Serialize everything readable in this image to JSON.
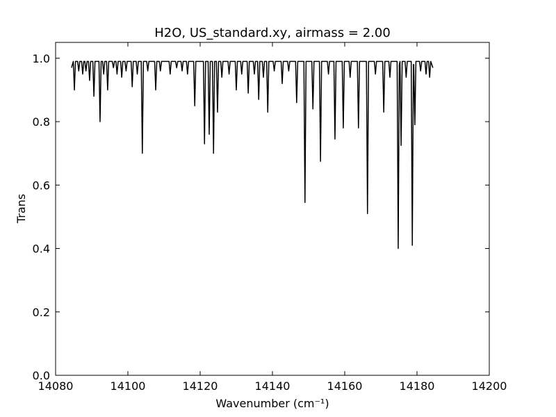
{
  "chart_data": {
    "type": "line",
    "title": "H2O, US_standard.xy, airmass = 2.00",
    "x_label": "Wavenumber (cm⁻¹)",
    "y_label": "Trans",
    "xlim": [
      14080,
      14200
    ],
    "ylim": [
      0,
      1.05
    ],
    "xticks": [
      14080,
      14100,
      14120,
      14140,
      14160,
      14180,
      14200
    ],
    "yticks": [
      {
        "value": 0,
        "label": "0.0"
      },
      0.2,
      0.4,
      0.6,
      0.8,
      {
        "value": 1,
        "label": "1.0"
      }
    ],
    "grid": false,
    "series": [
      {
        "color": "#000000",
        "x": [
          14084.4,
          14084.9,
          14085.2,
          14085.5,
          14086.1,
          14086.4,
          14086.7,
          14087.2,
          14087.5,
          14087.8,
          14088.1,
          14088.4,
          14088.7,
          14089.1,
          14089.4,
          14089.7,
          14090.3,
          14090.6,
          14090.9,
          14092.0,
          14092.3,
          14092.6,
          14093.0,
          14093.3,
          14093.6,
          14094.1,
          14094.4,
          14094.7,
          14095.7,
          14096.0,
          14096.3,
          14096.7,
          14097.0,
          14097.3,
          14098.0,
          14098.3,
          14098.6,
          14099.2,
          14099.5,
          14099.8,
          14100.9,
          14101.2,
          14101.5,
          14102.3,
          14102.6,
          14102.9,
          14103.7,
          14104.0,
          14104.3,
          14105.2,
          14105.5,
          14105.8,
          14107.4,
          14107.7,
          14108.0,
          14108.7,
          14109.0,
          14109.3,
          14111.4,
          14111.7,
          14112.0,
          14113.2,
          14113.5,
          14113.8,
          14114.7,
          14115.0,
          14115.3,
          14116.2,
          14116.5,
          14116.8,
          14118.2,
          14118.5,
          14118.8,
          14120.9,
          14121.2,
          14121.5,
          14122.2,
          14122.5,
          14122.8,
          14123.4,
          14123.7,
          14124.0,
          14124.5,
          14124.8,
          14125.1,
          14125.7,
          14126.0,
          14126.3,
          14127.7,
          14128.0,
          14128.3,
          14129.7,
          14130.0,
          14130.3,
          14131.2,
          14131.5,
          14131.8,
          14133.0,
          14133.3,
          14133.6,
          14134.7,
          14135.0,
          14135.3,
          14135.9,
          14136.2,
          14136.5,
          14137.2,
          14137.5,
          14137.8,
          14138.4,
          14138.7,
          14139.0,
          14140.2,
          14140.5,
          14140.8,
          14142.4,
          14142.7,
          14143.0,
          14144.2,
          14144.5,
          14144.8,
          14146.4,
          14146.7,
          14147.0,
          14148.7,
          14149.0,
          14149.3,
          14150.9,
          14151.2,
          14151.5,
          14153.0,
          14153.3,
          14153.6,
          14155.2,
          14155.5,
          14155.8,
          14157.0,
          14157.3,
          14157.6,
          14159.3,
          14159.6,
          14159.9,
          14161.2,
          14161.5,
          14161.8,
          14163.5,
          14163.8,
          14164.1,
          14166.0,
          14166.3,
          14166.6,
          14168.2,
          14168.5,
          14168.8,
          14170.5,
          14170.8,
          14171.1,
          14172.2,
          14172.5,
          14172.8,
          14174.5,
          14174.8,
          14175.1,
          14175.3,
          14175.6,
          14175.9,
          14176.7,
          14177.0,
          14177.3,
          14178.4,
          14178.7,
          14179.0,
          14179.1,
          14179.4,
          14179.7,
          14180.7,
          14181.0,
          14181.3,
          14182.2,
          14182.5,
          14182.8,
          14183.2,
          14183.5,
          14183.8,
          14184.4
        ],
        "values": [
          0.97,
          0.99,
          0.9,
          0.99,
          0.99,
          0.96,
          0.99,
          0.99,
          0.95,
          0.99,
          0.99,
          0.96,
          0.99,
          0.99,
          0.93,
          0.99,
          0.99,
          0.88,
          0.99,
          0.99,
          0.8,
          0.99,
          0.99,
          0.95,
          0.99,
          0.99,
          0.9,
          0.99,
          0.99,
          0.97,
          0.99,
          0.99,
          0.95,
          0.99,
          0.99,
          0.94,
          0.99,
          0.99,
          0.96,
          0.99,
          0.99,
          0.91,
          0.99,
          0.99,
          0.95,
          0.99,
          0.99,
          0.7,
          0.99,
          0.99,
          0.96,
          0.99,
          0.99,
          0.9,
          0.99,
          0.99,
          0.96,
          0.99,
          0.99,
          0.95,
          0.99,
          0.99,
          0.97,
          0.99,
          0.99,
          0.96,
          0.99,
          0.99,
          0.95,
          0.99,
          0.99,
          0.85,
          0.99,
          0.99,
          0.73,
          0.99,
          0.99,
          0.76,
          0.99,
          0.99,
          0.7,
          0.99,
          0.99,
          0.83,
          0.99,
          0.99,
          0.94,
          0.99,
          0.99,
          0.95,
          0.99,
          0.99,
          0.9,
          0.99,
          0.99,
          0.95,
          0.99,
          0.99,
          0.89,
          0.99,
          0.99,
          0.95,
          0.99,
          0.99,
          0.87,
          0.99,
          0.99,
          0.94,
          0.99,
          0.99,
          0.83,
          0.99,
          0.99,
          0.96,
          0.99,
          0.99,
          0.92,
          0.99,
          0.99,
          0.96,
          0.99,
          0.99,
          0.86,
          0.99,
          0.99,
          0.545,
          0.99,
          0.99,
          0.84,
          0.99,
          0.99,
          0.675,
          0.99,
          0.99,
          0.95,
          0.99,
          0.99,
          0.745,
          0.99,
          0.99,
          0.78,
          0.99,
          0.99,
          0.94,
          0.99,
          0.99,
          0.78,
          0.99,
          0.99,
          0.51,
          0.99,
          0.99,
          0.95,
          0.99,
          0.99,
          0.83,
          0.99,
          0.99,
          0.94,
          0.99,
          0.99,
          0.4,
          0.98,
          0.99,
          0.725,
          0.99,
          0.99,
          0.94,
          0.99,
          0.99,
          0.41,
          0.98,
          0.98,
          0.79,
          0.99,
          0.99,
          0.96,
          0.99,
          0.99,
          0.95,
          0.99,
          0.99,
          0.94,
          0.99,
          0.97
        ]
      }
    ]
  }
}
